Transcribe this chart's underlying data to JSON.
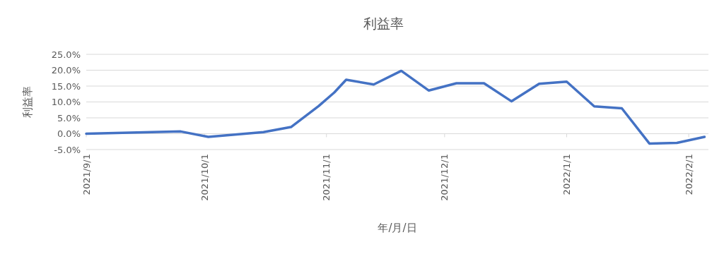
{
  "chart_data": {
    "type": "line",
    "title": "利益率",
    "xlabel": "年/月/日",
    "ylabel": "利益率",
    "x": [
      "2021-09-01",
      "2021-09-25",
      "2021-10-02",
      "2021-10-16",
      "2021-10-23",
      "2021-10-30",
      "2021-11-03",
      "2021-11-06",
      "2021-11-13",
      "2021-11-20",
      "2021-11-27",
      "2021-12-04",
      "2021-12-11",
      "2021-12-18",
      "2021-12-25",
      "2022-01-01",
      "2022-01-08",
      "2022-01-15",
      "2022-01-22",
      "2022-01-29",
      "2022-02-05"
    ],
    "series": [
      {
        "color": "#4472c4",
        "values": [
          0.0,
          0.7,
          -1.0,
          0.5,
          2.1,
          8.7,
          13.0,
          17.0,
          15.5,
          19.8,
          13.6,
          15.9,
          15.9,
          10.2,
          15.7,
          16.4,
          8.6,
          8.0,
          -3.1,
          -2.9,
          -1.0
        ]
      }
    ],
    "xlim": [
      "2021-09-01",
      "2022-02-06"
    ],
    "xticks": [
      {
        "value": "2021-09-01",
        "label": "2021/9/1"
      },
      {
        "value": "2021-10-01",
        "label": "2021/10/1"
      },
      {
        "value": "2021-11-01",
        "label": "2021/11/1"
      },
      {
        "value": "2021-12-01",
        "label": "2021/12/1"
      },
      {
        "value": "2022-01-01",
        "label": "2022/1/1"
      },
      {
        "value": "2022-02-01",
        "label": "2022/2/1"
      }
    ],
    "ylim": [
      -5,
      25
    ],
    "yticks": [
      {
        "value": -5,
        "label": "-5.0%"
      },
      {
        "value": 0,
        "label": "0.0%"
      },
      {
        "value": 5,
        "label": "5.0%"
      },
      {
        "value": 10,
        "label": "10.0%"
      },
      {
        "value": 15,
        "label": "15.0%"
      },
      {
        "value": 20,
        "label": "20.0%"
      },
      {
        "value": 25,
        "label": "25.0%"
      }
    ],
    "grid": "y",
    "marker": "none",
    "line_style": "solid"
  }
}
